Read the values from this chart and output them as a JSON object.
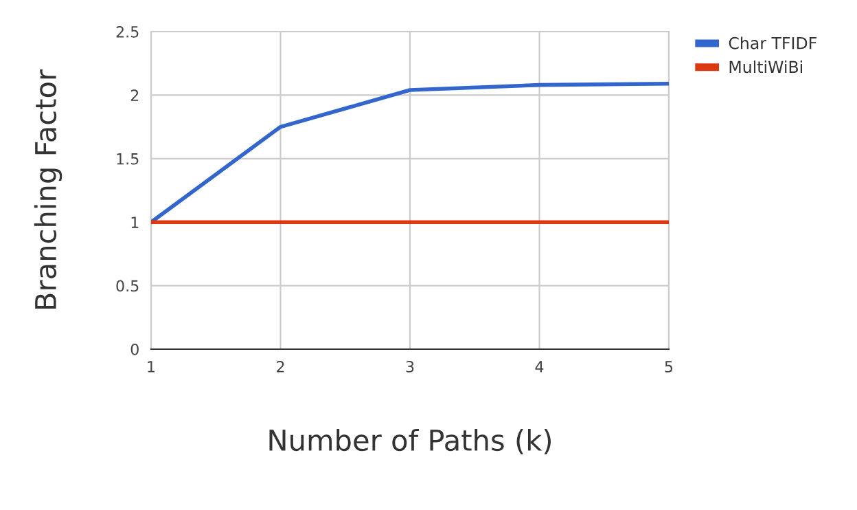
{
  "chart_data": {
    "type": "line",
    "xlabel": "Number of Paths (k)",
    "ylabel": "Branching Factor",
    "x": [
      1,
      2,
      3,
      4,
      5
    ],
    "series": [
      {
        "name": "Char TFIDF",
        "color": "#3366cc",
        "values": [
          1,
          1.75,
          2.04,
          2.08,
          2.09
        ]
      },
      {
        "name": "MultiWiBi",
        "color": "#dc3912",
        "values": [
          1,
          1,
          1,
          1,
          1
        ]
      }
    ],
    "xlim": [
      1,
      5
    ],
    "xticks": [
      1,
      2,
      3,
      4,
      5
    ],
    "ylim": [
      0,
      2.5
    ],
    "yticks": [
      0,
      0.5,
      1,
      1.5,
      2,
      2.5
    ],
    "grid": true,
    "legend": "top right",
    "marker": "none",
    "line_style": "solid"
  }
}
